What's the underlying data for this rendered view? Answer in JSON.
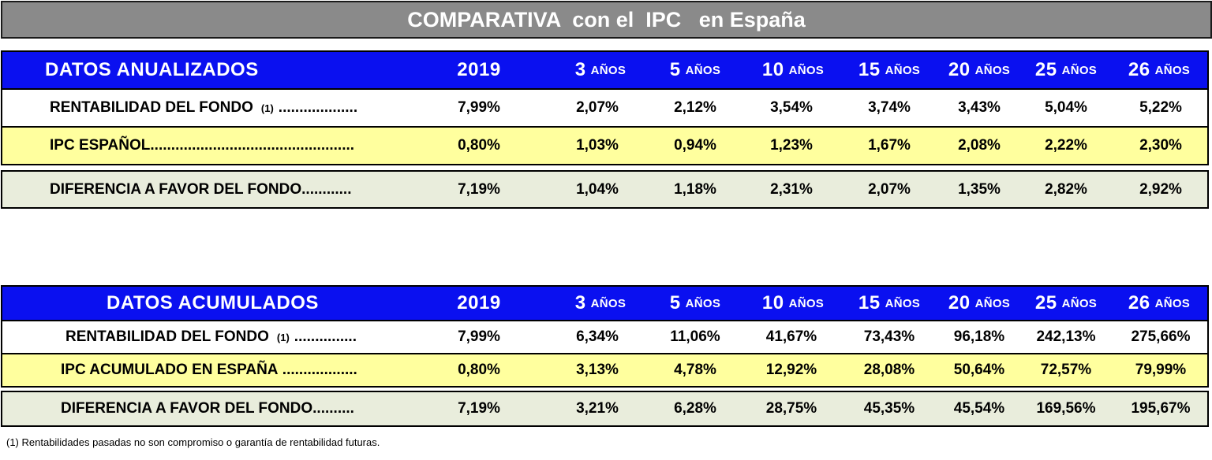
{
  "title": "COMPARATIVA  con el  IPC   en España",
  "columns": [
    {
      "num": "2019",
      "unit": ""
    },
    {
      "num": "3",
      "unit": "AÑOS"
    },
    {
      "num": "5",
      "unit": "AÑOS"
    },
    {
      "num": "10",
      "unit": "AÑOS"
    },
    {
      "num": "15",
      "unit": "AÑOS"
    },
    {
      "num": "20",
      "unit": "AÑOS"
    },
    {
      "num": "25",
      "unit": "AÑOS"
    },
    {
      "num": "26",
      "unit": "AÑOS"
    }
  ],
  "annualized": {
    "heading": "DATOS ANUALIZADOS",
    "rows": [
      {
        "label": "RENTABILIDAD DEL FONDO",
        "note": "(1)",
        "dots": "...................",
        "values": [
          "7,99%",
          "2,07%",
          "2,12%",
          "3,54%",
          "3,74%",
          "3,43%",
          "5,04%",
          "5,22%"
        ]
      },
      {
        "label": "IPC  ESPAÑOL",
        "note": "",
        "dots": ".................................................",
        "values": [
          "0,80%",
          "1,03%",
          "0,94%",
          "1,23%",
          "1,67%",
          "2,08%",
          "2,22%",
          "2,30%"
        ]
      },
      {
        "label": "DIFERENCIA A FAVOR DEL FONDO",
        "note": "",
        "dots": "............",
        "values": [
          "7,19%",
          "1,04%",
          "1,18%",
          "2,31%",
          "2,07%",
          "1,35%",
          "2,82%",
          "2,92%"
        ]
      }
    ]
  },
  "accumulated": {
    "heading": "DATOS ACUMULADOS",
    "rows": [
      {
        "label": "RENTABILIDAD DEL FONDO",
        "note": "(1)",
        "dots": "...............",
        "values": [
          "7,99%",
          "6,34%",
          "11,06%",
          "41,67%",
          "73,43%",
          "96,18%",
          "242,13%",
          "275,66%"
        ]
      },
      {
        "label": "IPC ACUMULADO EN ESPAÑA",
        "note": "",
        "dots": " ..................",
        "values": [
          "0,80%",
          "3,13%",
          "4,78%",
          "12,92%",
          "28,08%",
          "50,64%",
          "72,57%",
          "79,99%"
        ]
      },
      {
        "label": "DIFERENCIA A FAVOR DEL FONDO",
        "note": "",
        "dots": "..........",
        "values": [
          "7,19%",
          "3,21%",
          "6,28%",
          "28,75%",
          "45,35%",
          "45,54%",
          "169,56%",
          "195,67%"
        ]
      }
    ]
  },
  "footnote": "(1) Rentabilidades pasadas no son compromiso o garantía de rentabilidad futuras.",
  "colors": {
    "header_blue": "#0a10f0",
    "title_gray": "#8a8a8a",
    "ipc_yellow": "#ffff9e",
    "diff_green": "#e9eddc"
  }
}
